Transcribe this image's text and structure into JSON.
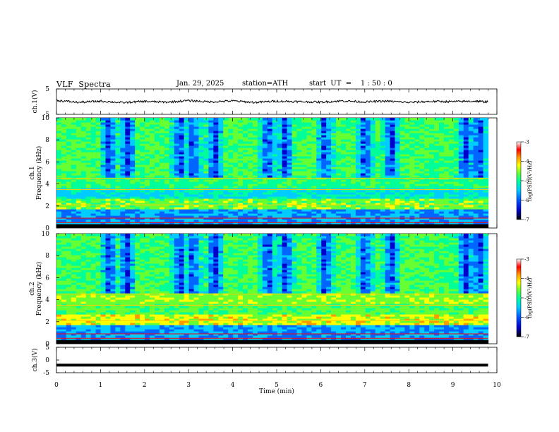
{
  "header": {
    "title": "VLF  Spectra",
    "date": "Jan. 29, 2025",
    "station": "station=ATH",
    "start": "start  UT  =    1 : 50 : 0"
  },
  "chart_data": [
    {
      "type": "line",
      "panel": "ch1-waveform",
      "ylabel": "ch.1(V)",
      "ylim": [
        -5,
        5
      ],
      "yticks": [
        "5",
        "-5"
      ],
      "xlim": [
        0,
        10
      ],
      "x": [
        0,
        0.5,
        1,
        1.5,
        2,
        2.5,
        3,
        3.5,
        4,
        4.5,
        5,
        5.5,
        6,
        6.5,
        7,
        7.5,
        8,
        8.5,
        9,
        9.5,
        9.8
      ],
      "values": [
        0.5,
        -0.3,
        0.2,
        -0.4,
        0.1,
        -0.2,
        0.4,
        -0.1,
        0.3,
        -0.3,
        0.2,
        0.0,
        -0.2,
        0.3,
        -0.1,
        0.2,
        -0.3,
        0.1,
        0.0,
        0.2,
        -0.1
      ],
      "color": "#000000"
    },
    {
      "type": "heatmap",
      "panel": "ch1-spectrogram",
      "ylabel": "ch.1\nFrequency (kHz)",
      "ylim": [
        0,
        10
      ],
      "yticks": [
        "10",
        "8",
        "6",
        "4",
        "2",
        "0"
      ],
      "xlim": [
        0,
        9.8
      ],
      "colorbar": {
        "label": "log(PSD)(V²/Hz)",
        "range": [
          -7,
          -3
        ],
        "ticks": [
          "-3",
          "-4",
          "-5",
          "-6",
          "-7"
        ]
      },
      "bursts_min": [
        1.2,
        1.6,
        2.8,
        3.1,
        3.6,
        4.8,
        5.2,
        6.1,
        7.0,
        7.6,
        9.3,
        9.6
      ]
    },
    {
      "type": "heatmap",
      "panel": "ch2-spectrogram",
      "ylabel": "ch.2\nFrequency (kHz)",
      "ylim": [
        0,
        10
      ],
      "yticks": [
        "10",
        "8",
        "6",
        "4",
        "2",
        "0"
      ],
      "xlim": [
        0,
        9.8
      ],
      "colorbar": {
        "label": "log(PSD)(V²/Hz)",
        "range": [
          -7,
          -3
        ],
        "ticks": [
          "-3",
          "-4",
          "-5",
          "-6",
          "-7"
        ]
      },
      "bursts_min": [
        1.2,
        1.6,
        2.8,
        3.1,
        3.6,
        4.8,
        5.2,
        6.1,
        7.0,
        7.6,
        9.3,
        9.6
      ]
    },
    {
      "type": "line",
      "panel": "ch3-waveform",
      "ylabel": "ch.3(V)",
      "ylim": [
        -5,
        5
      ],
      "yticks": [
        "5",
        "0",
        "-5"
      ],
      "xlim": [
        0,
        10
      ],
      "x": [
        0,
        9.8
      ],
      "values": [
        -2,
        -2
      ],
      "color": "#000000"
    }
  ],
  "xaxis": {
    "label": "Time (min)",
    "ticks": [
      "0",
      "1",
      "2",
      "3",
      "4",
      "5",
      "6",
      "7",
      "8",
      "9",
      "10"
    ],
    "range": [
      0,
      10
    ]
  },
  "colors": {
    "scale": [
      "#000000",
      "#0000cc",
      "#0066ff",
      "#00ccff",
      "#00ff99",
      "#66ff33",
      "#ffff00",
      "#ff9900",
      "#ff0000",
      "#ffffff"
    ]
  }
}
